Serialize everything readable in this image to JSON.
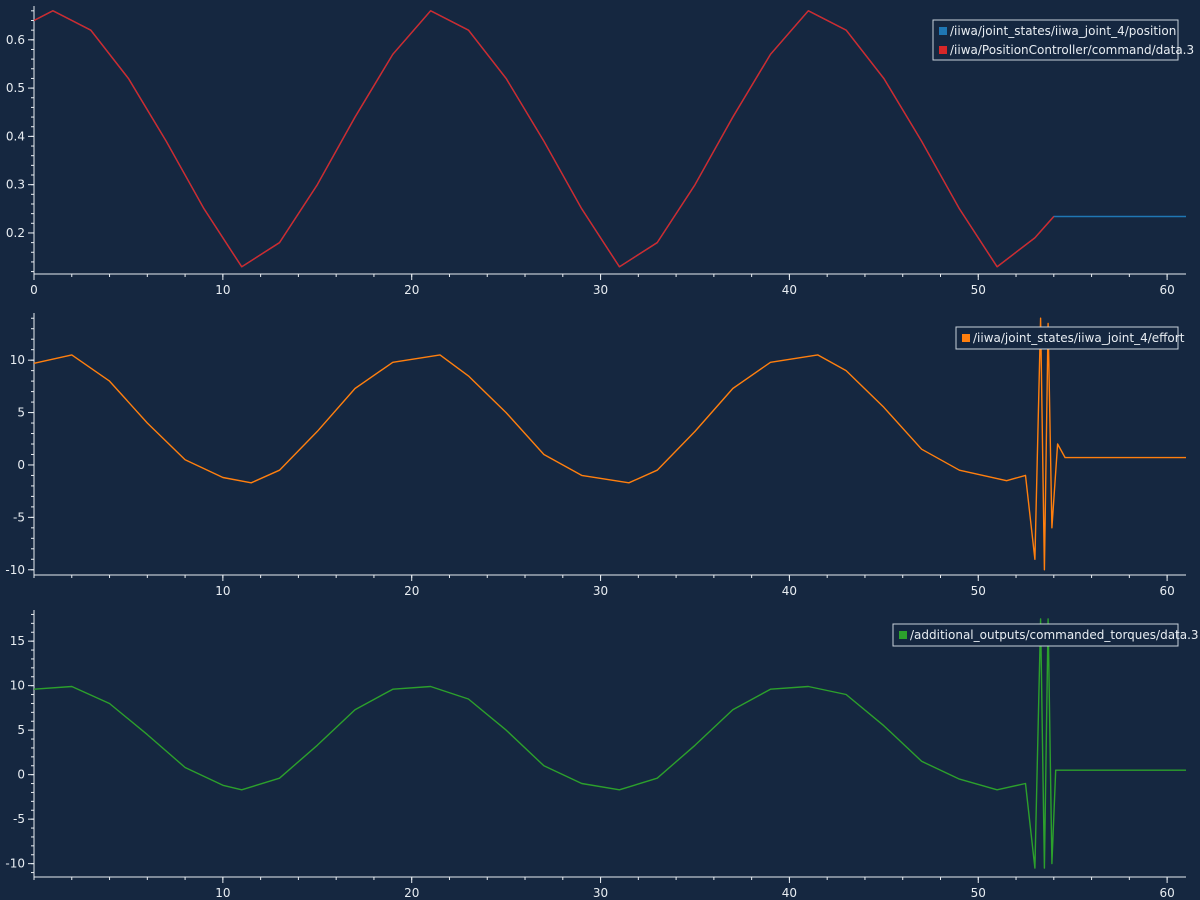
{
  "colors": {
    "background": "#152740",
    "axis": "#e8edf2",
    "legend_bg": "#152740",
    "legend_border": "#c8d0da",
    "blue": "#1f77b4",
    "red": "#d62728",
    "orange": "#ff7f0e",
    "green": "#2ca02c"
  },
  "chart_data": [
    {
      "type": "line",
      "title": "",
      "xlabel": "",
      "ylabel": "",
      "xlim": [
        0,
        61
      ],
      "ylim": [
        0.115,
        0.67
      ],
      "xticks": [
        0,
        10,
        20,
        30,
        40,
        50,
        60
      ],
      "xtick_labels": [
        "0",
        "10",
        "20",
        "30",
        "40",
        "50",
        "60"
      ],
      "yticks": [
        0.2,
        0.3,
        0.4,
        0.5,
        0.6
      ],
      "ytick_labels": [
        "0.2",
        "0.3",
        "0.4",
        "0.5",
        "0.6"
      ],
      "grid": false,
      "legend_position": "top-right",
      "series": [
        {
          "name": "/iiwa/joint_states/iiwa_joint_4/position",
          "color": "#1f77b4",
          "x": [
            0,
            1,
            3,
            5,
            7,
            9,
            11,
            13,
            15,
            17,
            19,
            21,
            23,
            25,
            27,
            29,
            31,
            33,
            35,
            37,
            39,
            41,
            43,
            45,
            47,
            49,
            51,
            53,
            54,
            61
          ],
          "y": [
            0.64,
            0.66,
            0.62,
            0.52,
            0.39,
            0.25,
            0.13,
            0.18,
            0.3,
            0.44,
            0.57,
            0.66,
            0.62,
            0.52,
            0.39,
            0.25,
            0.13,
            0.18,
            0.3,
            0.44,
            0.57,
            0.66,
            0.62,
            0.52,
            0.39,
            0.25,
            0.13,
            0.19,
            0.234,
            0.234
          ]
        },
        {
          "name": "/iiwa/PositionController/command/data.3",
          "color": "#d62728",
          "x": [
            0,
            1,
            3,
            5,
            7,
            9,
            11,
            13,
            15,
            17,
            19,
            21,
            23,
            25,
            27,
            29,
            31,
            33,
            35,
            37,
            39,
            41,
            43,
            45,
            47,
            49,
            51,
            53,
            54
          ],
          "y": [
            0.64,
            0.66,
            0.62,
            0.52,
            0.39,
            0.25,
            0.13,
            0.18,
            0.3,
            0.44,
            0.57,
            0.66,
            0.62,
            0.52,
            0.39,
            0.25,
            0.13,
            0.18,
            0.3,
            0.44,
            0.57,
            0.66,
            0.62,
            0.52,
            0.39,
            0.25,
            0.13,
            0.19,
            0.234
          ]
        }
      ]
    },
    {
      "type": "line",
      "title": "",
      "xlabel": "",
      "ylabel": "",
      "xlim": [
        0,
        61
      ],
      "ylim": [
        -10.5,
        14.5
      ],
      "xticks": [
        10,
        20,
        30,
        40,
        50,
        60
      ],
      "xtick_labels": [
        "10",
        "20",
        "30",
        "40",
        "50",
        "60"
      ],
      "yticks": [
        -10,
        -5,
        0,
        5,
        10
      ],
      "ytick_labels": [
        "-10",
        "-5",
        "0",
        "5",
        "10"
      ],
      "grid": false,
      "legend_position": "top-right",
      "series": [
        {
          "name": "/iiwa/joint_states/iiwa_joint_4/effort",
          "color": "#ff7f0e",
          "x": [
            0,
            2,
            4,
            6,
            8,
            10,
            11.5,
            13,
            15,
            17,
            19,
            21.5,
            23,
            25,
            27,
            29,
            31.5,
            33,
            35,
            37,
            39,
            41.5,
            43,
            45,
            47,
            49,
            51.5,
            52.5,
            53,
            53.3,
            53.5,
            53.7,
            53.9,
            54.2,
            54.6,
            61
          ],
          "y": [
            9.7,
            10.5,
            8.0,
            4.0,
            0.5,
            -1.2,
            -1.7,
            -0.5,
            3.2,
            7.3,
            9.8,
            10.5,
            8.5,
            5.0,
            1.0,
            -1.0,
            -1.7,
            -0.5,
            3.2,
            7.3,
            9.8,
            10.5,
            9.0,
            5.5,
            1.5,
            -0.5,
            -1.5,
            -1.0,
            -9.0,
            14.0,
            -10.0,
            13.5,
            -6.0,
            2.0,
            0.7,
            0.7
          ]
        }
      ]
    },
    {
      "type": "line",
      "title": "",
      "xlabel": "",
      "ylabel": "",
      "xlim": [
        0,
        61
      ],
      "ylim": [
        -11.5,
        18.5
      ],
      "xticks": [
        10,
        20,
        30,
        40,
        50,
        60
      ],
      "xtick_labels": [
        "10",
        "20",
        "30",
        "40",
        "50",
        "60"
      ],
      "yticks": [
        -10,
        -5,
        0,
        5,
        10,
        15
      ],
      "ytick_labels": [
        "-10",
        "-5",
        "0",
        "5",
        "10",
        "15"
      ],
      "grid": false,
      "legend_position": "top-right",
      "series": [
        {
          "name": "/additional_outputs/commanded_torques/data.3",
          "color": "#2ca02c",
          "x": [
            0,
            2,
            4,
            6,
            8,
            10,
            11,
            13,
            15,
            17,
            19,
            21,
            23,
            25,
            27,
            29,
            31,
            33,
            35,
            37,
            39,
            41,
            43,
            45,
            47,
            49,
            51,
            52.5,
            53,
            53.3,
            53.5,
            53.7,
            53.9,
            54.1,
            61
          ],
          "y": [
            9.6,
            9.9,
            8.0,
            4.5,
            0.8,
            -1.2,
            -1.7,
            -0.4,
            3.3,
            7.3,
            9.6,
            9.9,
            8.5,
            5.0,
            1.0,
            -1.0,
            -1.7,
            -0.4,
            3.3,
            7.3,
            9.6,
            9.9,
            9.0,
            5.5,
            1.5,
            -0.5,
            -1.7,
            -1.0,
            -10.5,
            17.5,
            -10.5,
            17.5,
            -10.0,
            0.5,
            0.5
          ]
        }
      ]
    }
  ]
}
